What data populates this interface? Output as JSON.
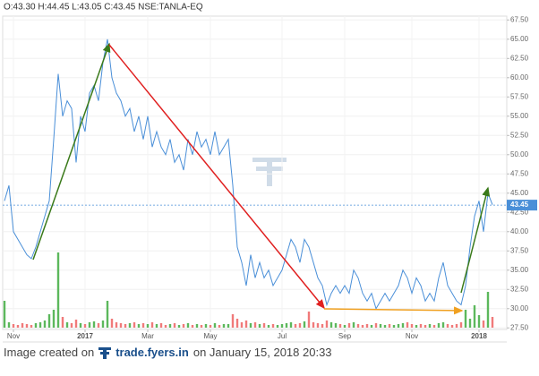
{
  "header": "O:43.30 H:44.45 L:43.05 C:43.45 NSE:TANLA-EQ",
  "chart_data": {
    "type": "line",
    "series": [
      {
        "name": "NSE:TANLA-EQ",
        "color": "#4a8fd8",
        "values": [
          44,
          46,
          40,
          39,
          38,
          37,
          36.5,
          38,
          40,
          42,
          44,
          52,
          60.5,
          55,
          57,
          56,
          49,
          55,
          53,
          58,
          59,
          57,
          62,
          65,
          60,
          58,
          57,
          55,
          56,
          53,
          55,
          52,
          55,
          51,
          53,
          51,
          50,
          52,
          49,
          50,
          48,
          52,
          50,
          53,
          51,
          52,
          50,
          53,
          50,
          51,
          52,
          46,
          38,
          36,
          33,
          37,
          34,
          36,
          34,
          35,
          33,
          34,
          35,
          37,
          39,
          38,
          36,
          39,
          38,
          36,
          34,
          33,
          30.5,
          32,
          33,
          32,
          33,
          32,
          35,
          34,
          32,
          31,
          32,
          30,
          31,
          32,
          31,
          32,
          33,
          35,
          34,
          32,
          34,
          33,
          31,
          32,
          31,
          34,
          36,
          33,
          32,
          31,
          30.5,
          33,
          38,
          42,
          44,
          40,
          45,
          43.5
        ]
      }
    ],
    "volume": {
      "up_color": "#5cb85c",
      "down_color": "#f07a7a",
      "values": [
        30,
        6,
        4,
        3,
        5,
        4,
        3,
        5,
        6,
        8,
        15,
        20,
        84,
        12,
        6,
        5,
        9,
        5,
        4,
        6,
        7,
        5,
        8,
        30,
        10,
        6,
        5,
        4,
        5,
        6,
        4,
        5,
        4,
        6,
        4,
        5,
        3,
        4,
        5,
        3,
        4,
        5,
        3,
        4,
        3,
        4,
        3,
        5,
        3,
        4,
        4,
        15,
        10,
        6,
        8,
        5,
        6,
        4,
        5,
        3,
        4,
        3,
        4,
        5,
        6,
        4,
        5,
        7,
        18,
        6,
        5,
        4,
        8,
        6,
        5,
        4,
        3,
        5,
        6,
        4,
        3,
        4,
        3,
        5,
        4,
        3,
        4,
        3,
        4,
        5,
        6,
        4,
        3,
        4,
        3,
        4,
        3,
        5,
        6,
        4,
        3,
        4,
        6,
        20,
        10,
        25,
        14,
        8,
        40,
        12
      ]
    },
    "y2lim": [
      0,
      100
    ],
    "xlim": [
      -0.4,
      112.2
    ],
    "xticks": [
      {
        "value": 2,
        "label": "Nov"
      },
      {
        "value": 18,
        "label": "2017"
      },
      {
        "value": 32,
        "label": "Mar"
      },
      {
        "value": 46,
        "label": "May"
      },
      {
        "value": 62,
        "label": "Jul"
      },
      {
        "value": 76,
        "label": "Sep"
      },
      {
        "value": 91,
        "label": "Nov"
      },
      {
        "value": 106,
        "label": "2018"
      }
    ],
    "ylim": [
      27.3,
      68
    ],
    "yticks": [
      {
        "value": 27.5,
        "label": "27.50"
      },
      {
        "value": 30,
        "label": "30.00"
      },
      {
        "value": 32.5,
        "label": "32.50"
      },
      {
        "value": 35,
        "label": "35.00"
      },
      {
        "value": 37.5,
        "label": "37.50"
      },
      {
        "value": 40,
        "label": "40.00"
      },
      {
        "value": 42.5,
        "label": "42.50"
      },
      {
        "value": 45,
        "label": "45.00"
      },
      {
        "value": 47.5,
        "label": "47.50"
      },
      {
        "value": 50,
        "label": "50.00"
      },
      {
        "value": 52.5,
        "label": "52.50"
      },
      {
        "value": 55,
        "label": "55.00"
      },
      {
        "value": 57.5,
        "label": "57.50"
      },
      {
        "value": 60,
        "label": "60.00"
      },
      {
        "value": 62.5,
        "label": "62.50"
      },
      {
        "value": 65,
        "label": "65.00"
      },
      {
        "value": 67.5,
        "label": "67.50"
      }
    ],
    "grid": true,
    "last_price": 43.45
  },
  "caption": {
    "prefix": "Image created on",
    "site": "trade.fyers.in",
    "suffix": "on January 15, 2018 20:33"
  }
}
